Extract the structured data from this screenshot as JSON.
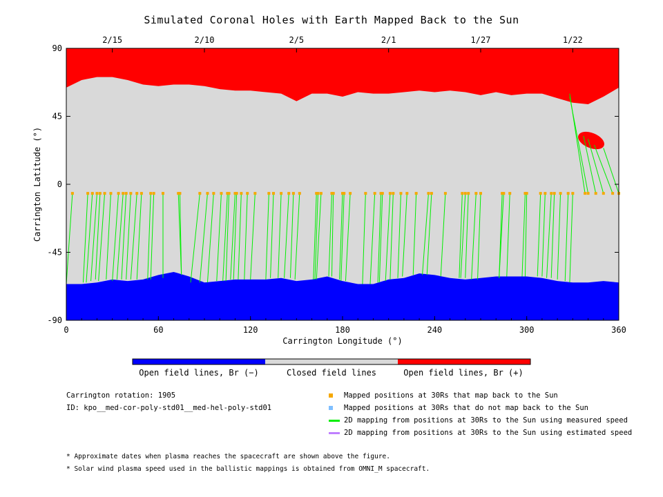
{
  "title": "Simulated Coronal Holes with Earth Mapped Back to the Sun",
  "chart_data": {
    "type": "scatter",
    "title": "Simulated Coronal Holes with Earth Mapped Back to the Sun",
    "xlabel": "Carrington Longitude (°)",
    "ylabel": "Carrington Latitude (°)",
    "xlim": [
      0,
      360
    ],
    "ylim": [
      -90,
      90
    ],
    "xticks": [
      "0",
      "60",
      "120",
      "180",
      "240",
      "300",
      "360"
    ],
    "xtick_values": [
      0,
      60,
      120,
      180,
      240,
      300,
      360
    ],
    "yticks": [
      "90",
      "45",
      "0",
      "-45",
      "-90"
    ],
    "ytick_values": [
      90,
      45,
      0,
      -45,
      -90
    ],
    "top_axis_dates": [
      {
        "label": "2/15",
        "lon": 30
      },
      {
        "label": "2/10",
        "lon": 90
      },
      {
        "label": "2/5",
        "lon": 150
      },
      {
        "label": "2/1",
        "lon": 210
      },
      {
        "label": "1/27",
        "lon": 270
      },
      {
        "label": "1/22",
        "lon": 330
      }
    ],
    "north_boundary": {
      "lon": [
        0,
        10,
        20,
        30,
        40,
        50,
        60,
        70,
        80,
        90,
        100,
        110,
        120,
        130,
        140,
        150,
        160,
        170,
        180,
        190,
        200,
        210,
        220,
        230,
        240,
        250,
        260,
        270,
        280,
        290,
        300,
        310,
        320,
        330,
        340,
        350,
        360
      ],
      "lat": [
        64,
        69,
        71,
        71,
        69,
        66,
        65,
        66,
        66,
        65,
        63,
        62,
        62,
        61,
        60,
        55,
        60,
        60,
        58,
        61,
        60,
        60,
        61,
        62,
        61,
        62,
        61,
        59,
        61,
        59,
        60,
        60,
        57,
        54,
        53,
        58,
        64
      ]
    },
    "south_boundary": {
      "lon": [
        0,
        10,
        20,
        30,
        40,
        50,
        60,
        70,
        80,
        90,
        100,
        110,
        120,
        130,
        140,
        150,
        160,
        170,
        180,
        190,
        200,
        210,
        220,
        230,
        240,
        250,
        260,
        270,
        280,
        290,
        300,
        310,
        320,
        330,
        340,
        350,
        360
      ],
      "lat": [
        -66,
        -66,
        -65,
        -63,
        -64,
        -63,
        -60,
        -58,
        -61,
        -65,
        -64,
        -63,
        -63,
        -63,
        -62,
        -64,
        -63,
        -61,
        -64,
        -66,
        -66,
        -63,
        -62,
        -59,
        -60,
        -62,
        -63,
        -62,
        -61,
        -61,
        -61,
        -62,
        -64,
        -65,
        -65,
        -64,
        -65
      ]
    },
    "positive_hole": {
      "center_lon": 342,
      "center_lat": 29,
      "half_width_lon": 9,
      "half_height_lat": 5
    },
    "spacecraft_latitude": -6,
    "mapped_points_lon": [
      4,
      14,
      17,
      20,
      22,
      25,
      29,
      34,
      37,
      39,
      42,
      46,
      49,
      55,
      57,
      63,
      73,
      74,
      87,
      92,
      96,
      101,
      105,
      106,
      110,
      111,
      114,
      118,
      123,
      132,
      135,
      140,
      145,
      148,
      152,
      163,
      164,
      166,
      173,
      174,
      180,
      181,
      185,
      195,
      201,
      205,
      206,
      211,
      213,
      218,
      222,
      228,
      236,
      238,
      247,
      258,
      260,
      262,
      267,
      270,
      284,
      285,
      289,
      299,
      300,
      309,
      312,
      316,
      318,
      322,
      327,
      330,
      338,
      340,
      345,
      350,
      356,
      360
    ],
    "footpoint_lat": [
      -66,
      -65,
      -65,
      -64,
      -63,
      -64,
      -63,
      -64,
      -63,
      -63,
      -63,
      -63,
      -63,
      -63,
      -63,
      -62,
      -60,
      -59,
      -65,
      -65,
      -65,
      -64,
      -64,
      -64,
      -63,
      -63,
      -63,
      -63,
      -63,
      -63,
      -62,
      -62,
      -62,
      -62,
      -63,
      -63,
      -63,
      -63,
      -61,
      -61,
      -63,
      -64,
      -64,
      -66,
      -66,
      -65,
      -65,
      -64,
      -63,
      -62,
      -61,
      -60,
      -60,
      -60,
      -61,
      -62,
      -62,
      -62,
      -63,
      -63,
      -62,
      -62,
      -61,
      -61,
      -61,
      -61,
      -61,
      -62,
      -62,
      -63,
      -64,
      -65,
      60,
      58,
      32,
      30,
      26,
      24
    ],
    "footpoint_lon_offset": [
      -4,
      -3,
      -4,
      -4,
      -3,
      -4,
      -3,
      -4,
      -4,
      -3,
      -3,
      -4,
      -3,
      -2,
      -2,
      0,
      2,
      1,
      -6,
      -5,
      -4,
      -3,
      -3,
      -2,
      -3,
      -2,
      -2,
      -2,
      -3,
      -2,
      -2,
      -2,
      -3,
      -2,
      -3,
      -2,
      -2,
      -3,
      -2,
      -1,
      -2,
      -2,
      -3,
      -2,
      -3,
      -2,
      -2,
      -3,
      -2,
      -2,
      -3,
      -2,
      -4,
      -3,
      -3,
      -2,
      -3,
      -2,
      -3,
      -2,
      -2,
      -3,
      -2,
      -2,
      -1,
      -2,
      -2,
      -3,
      -2,
      -2,
      -2,
      -2,
      -10,
      -12,
      -8,
      -10,
      -12,
      -10
    ],
    "colorbar": {
      "segments": [
        {
          "label": "Open field lines, Br (−)",
          "color": "#0000ff"
        },
        {
          "label": "Closed field lines",
          "color": "#d9d9d9"
        },
        {
          "label": "Open field lines, Br (+)",
          "color": "#ff0000"
        }
      ]
    },
    "colors": {
      "positive": "#ff0000",
      "negative": "#0000ff",
      "closed": "#d9d9d9",
      "mapped_point": "#f5a800",
      "unmapped_point": "#7fbfff",
      "measured_line": "#00ee00",
      "estimated_line": "#bf7fff"
    }
  },
  "info": {
    "rotation": "Carrington rotation: 1905",
    "id": "ID: kpo__med-cor-poly-std01__med-hel-poly-std01"
  },
  "legend": [
    {
      "label": "Mapped positions at 30Rs that map back to the Sun",
      "kind": "square",
      "color": "#f5a800"
    },
    {
      "label": "Mapped positions at 30Rs that do not map back to the Sun",
      "kind": "square",
      "color": "#7fbfff"
    },
    {
      "label": "2D mapping from positions at 30Rs to the Sun using measured speed",
      "kind": "line",
      "color": "#00ee00"
    },
    {
      "label": "2D mapping from positions at 30Rs to the Sun using estimated speed",
      "kind": "line",
      "color": "#bf7fff"
    }
  ],
  "notes": [
    "* Approximate dates when plasma reaches the spacecraft are shown above the figure.",
    "* Solar wind plasma speed used in the ballistic mappings is obtained from OMNI_M spacecraft."
  ]
}
